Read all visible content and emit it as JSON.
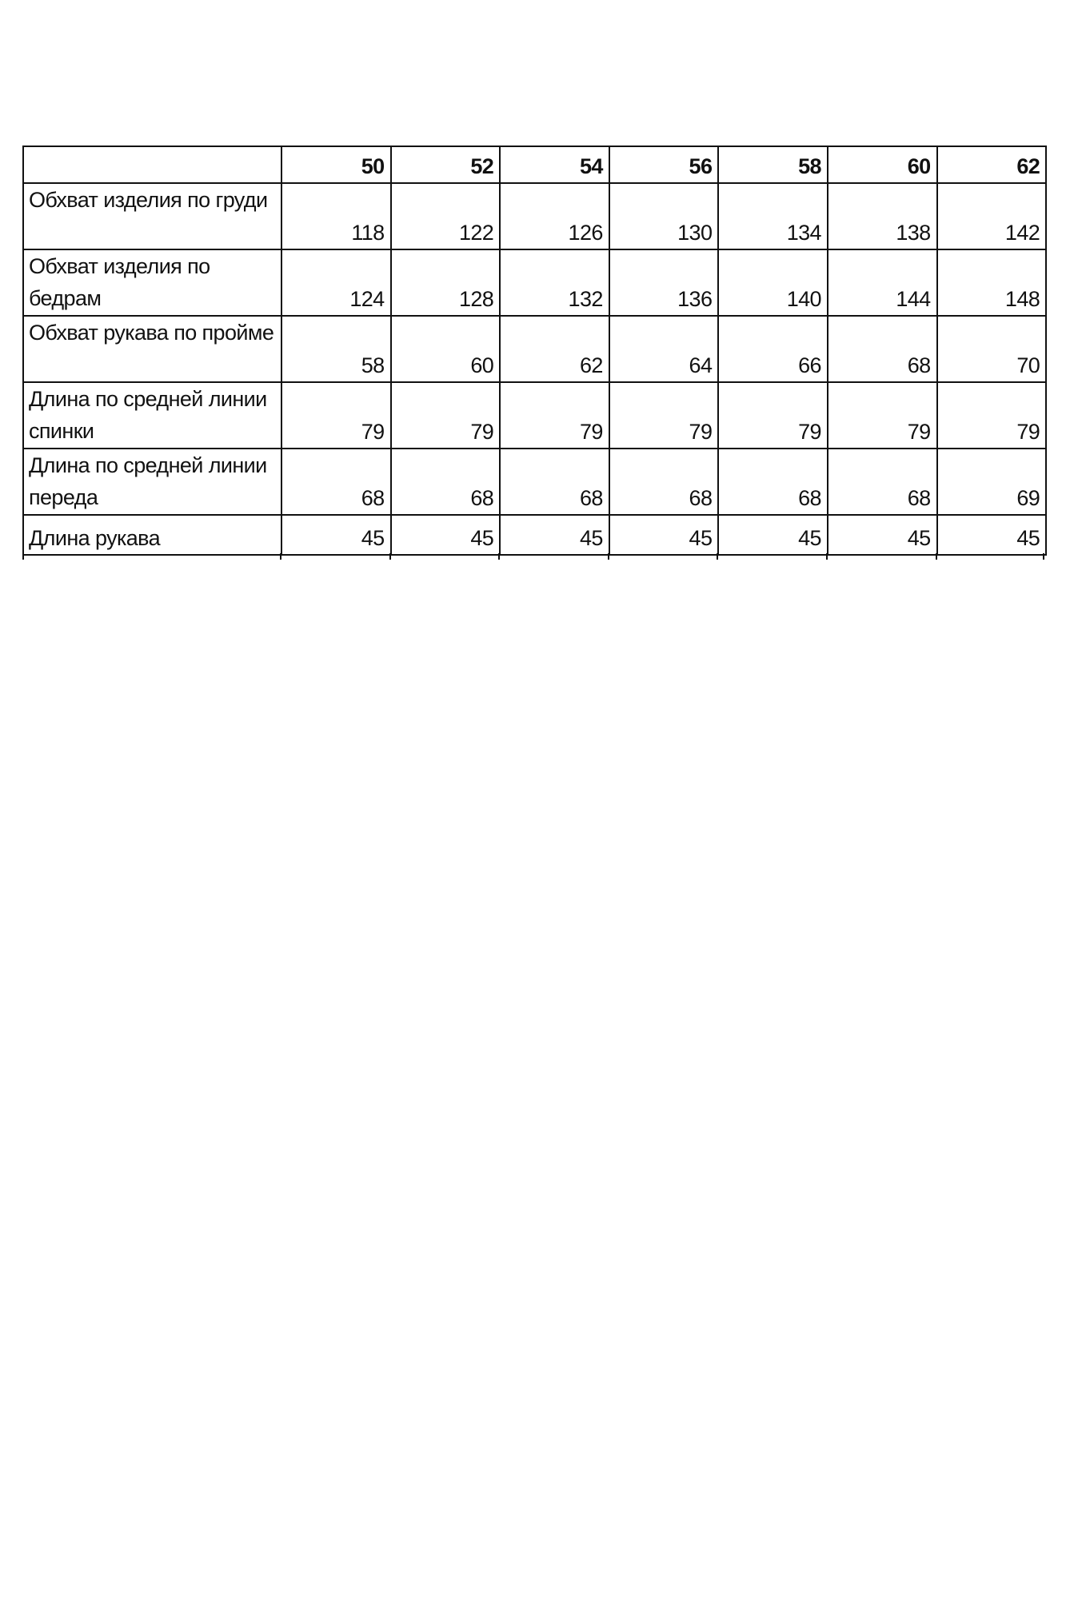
{
  "table": {
    "header": [
      "",
      "50",
      "52",
      "54",
      "56",
      "58",
      "60",
      "62"
    ],
    "rows": [
      {
        "label": "Обхват изделия по груди",
        "values": [
          "118",
          "122",
          "126",
          "130",
          "134",
          "138",
          "142"
        ]
      },
      {
        "label": "Обхват изделия по бедрам",
        "values": [
          "124",
          "128",
          "132",
          "136",
          "140",
          "144",
          "148"
        ]
      },
      {
        "label": "Обхват рукава по пройме",
        "values": [
          "58",
          "60",
          "62",
          "64",
          "66",
          "68",
          "70"
        ]
      },
      {
        "label": "Длина по средней линии спинки",
        "values": [
          "79",
          "79",
          "79",
          "79",
          "79",
          "79",
          "79"
        ]
      },
      {
        "label": "Длина по средней линии переда",
        "values": [
          "68",
          "68",
          "68",
          "68",
          "68",
          "68",
          "69"
        ]
      },
      {
        "label": "Длина рукава",
        "values": [
          "45",
          "45",
          "45",
          "45",
          "45",
          "45",
          "45"
        ]
      }
    ]
  }
}
